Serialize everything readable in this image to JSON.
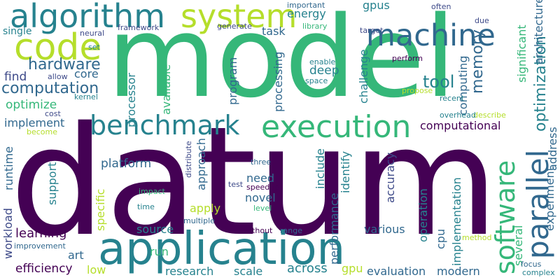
{
  "colors": {
    "purple": "#440154",
    "indigo": "#482878",
    "blue": "#31688e",
    "teal": "#26828e",
    "green": "#35b779",
    "lime": "#b5de2b",
    "yellow": "#fde725",
    "slate": "#3e4a89"
  },
  "words": [
    {
      "text": "datum",
      "color": "#440154"
    },
    {
      "text": "model",
      "color": "#35b779"
    },
    {
      "text": "application",
      "color": "#26828e"
    },
    {
      "text": "algorithm",
      "color": "#26828e"
    },
    {
      "text": "system",
      "color": "#b5de2b"
    },
    {
      "text": "code",
      "color": "#b5de2b"
    },
    {
      "text": "machine",
      "color": "#31688e"
    },
    {
      "text": "execution",
      "color": "#35b779"
    },
    {
      "text": "benchmark",
      "color": "#26828e"
    },
    {
      "text": "parallel",
      "color": "#31688e"
    },
    {
      "text": "software",
      "color": "#35b779"
    },
    {
      "text": "hardware",
      "color": "#31688e"
    },
    {
      "text": "computation",
      "color": "#31688e"
    },
    {
      "text": "optimization",
      "color": "#26828e"
    },
    {
      "text": "memory",
      "color": "#31688e"
    },
    {
      "text": "tool",
      "color": "#26828e"
    },
    {
      "text": "energy",
      "color": "#26828e"
    },
    {
      "text": "gpus",
      "color": "#26828e"
    },
    {
      "text": "task",
      "color": "#31688e"
    },
    {
      "text": "single",
      "color": "#26828e"
    },
    {
      "text": "find",
      "color": "#3e4a89"
    },
    {
      "text": "core",
      "color": "#31688e"
    },
    {
      "text": "optimize",
      "color": "#35b779"
    },
    {
      "text": "implement",
      "color": "#31688e"
    },
    {
      "text": "processor",
      "color": "#26828e"
    },
    {
      "text": "available",
      "color": "#35b779"
    },
    {
      "text": "deep",
      "color": "#26828e"
    },
    {
      "text": "program",
      "color": "#31688e"
    },
    {
      "text": "processing",
      "color": "#31688e"
    },
    {
      "text": "challenge",
      "color": "#26828e"
    },
    {
      "text": "computing",
      "color": "#31688e"
    },
    {
      "text": "significant",
      "color": "#35b779"
    },
    {
      "text": "architecture",
      "color": "#31688e"
    },
    {
      "text": "computational",
      "color": "#440154"
    },
    {
      "text": "platform",
      "color": "#31688e"
    },
    {
      "text": "approach",
      "color": "#31688e"
    },
    {
      "text": "include",
      "color": "#26828e"
    },
    {
      "text": "identify",
      "color": "#26828e"
    },
    {
      "text": "accuracy",
      "color": "#3e4a89"
    },
    {
      "text": "need",
      "color": "#31688e"
    },
    {
      "text": "novel",
      "color": "#31688e"
    },
    {
      "text": "performance",
      "color": "#31688e"
    },
    {
      "text": "apply",
      "color": "#b5de2b"
    },
    {
      "text": "runtime",
      "color": "#31688e"
    },
    {
      "text": "support",
      "color": "#26828e"
    },
    {
      "text": "specific",
      "color": "#b5de2b"
    },
    {
      "text": "learning",
      "color": "#440154"
    },
    {
      "text": "source",
      "color": "#26828e"
    },
    {
      "text": "art",
      "color": "#31688e"
    },
    {
      "text": "run",
      "color": "#35b779"
    },
    {
      "text": "efficiency",
      "color": "#440154"
    },
    {
      "text": "workload",
      "color": "#3e4a89"
    },
    {
      "text": "low",
      "color": "#b5de2b"
    },
    {
      "text": "research",
      "color": "#26828e"
    },
    {
      "text": "scale",
      "color": "#26828e"
    },
    {
      "text": "across",
      "color": "#26828e"
    },
    {
      "text": "gpu",
      "color": "#b5de2b"
    },
    {
      "text": "evaluation",
      "color": "#31688e"
    },
    {
      "text": "modern",
      "color": "#31688e"
    },
    {
      "text": "various",
      "color": "#31688e"
    },
    {
      "text": "operation",
      "color": "#26828e"
    },
    {
      "text": "cpu",
      "color": "#31688e"
    },
    {
      "text": "implementation",
      "color": "#26828e"
    },
    {
      "text": "several",
      "color": "#35b779"
    },
    {
      "text": "experiment",
      "color": "#31688e"
    },
    {
      "text": "address",
      "color": "#31688e"
    },
    {
      "text": "describe",
      "color": "#b5de2b"
    },
    {
      "text": "overhead",
      "color": "#26828e"
    },
    {
      "text": "focus",
      "color": "#31688e"
    },
    {
      "text": "complex",
      "color": "#26828e"
    },
    {
      "text": "method",
      "color": "#b5de2b"
    },
    {
      "text": "range",
      "color": "#31688e"
    },
    {
      "text": "without",
      "color": "#440154"
    },
    {
      "text": "multiple",
      "color": "#31688e"
    },
    {
      "text": "level",
      "color": "#35b779"
    },
    {
      "text": "speedup",
      "color": "#440154"
    },
    {
      "text": "test",
      "color": "#3e4a89"
    },
    {
      "text": "three",
      "color": "#31688e"
    },
    {
      "text": "distribute",
      "color": "#3e4a89"
    },
    {
      "text": "impact",
      "color": "#35b779"
    },
    {
      "text": "time",
      "color": "#26828e"
    },
    {
      "text": "improvement",
      "color": "#31688e"
    },
    {
      "text": "become",
      "color": "#b5de2b"
    },
    {
      "text": "cost",
      "color": "#3e4a89"
    },
    {
      "text": "kernel",
      "color": "#26828e"
    },
    {
      "text": "allow",
      "color": "#3e4a89"
    },
    {
      "text": "neural",
      "color": "#3e4a89"
    },
    {
      "text": "set",
      "color": "#26828e"
    },
    {
      "text": "framework",
      "color": "#3e4a89"
    },
    {
      "text": "generate",
      "color": "#3e4a89"
    },
    {
      "text": "important",
      "color": "#31688e"
    },
    {
      "text": "library",
      "color": "#35b779"
    },
    {
      "text": "often",
      "color": "#3e4a89"
    },
    {
      "text": "due",
      "color": "#3e4a89"
    },
    {
      "text": "target",
      "color": "#3e4a89"
    },
    {
      "text": "perform",
      "color": "#440154"
    },
    {
      "text": "enable",
      "color": "#26828e"
    },
    {
      "text": "space",
      "color": "#26828e"
    },
    {
      "text": "propose",
      "color": "#b5de2b"
    },
    {
      "text": "recent",
      "color": "#26828e"
    }
  ]
}
